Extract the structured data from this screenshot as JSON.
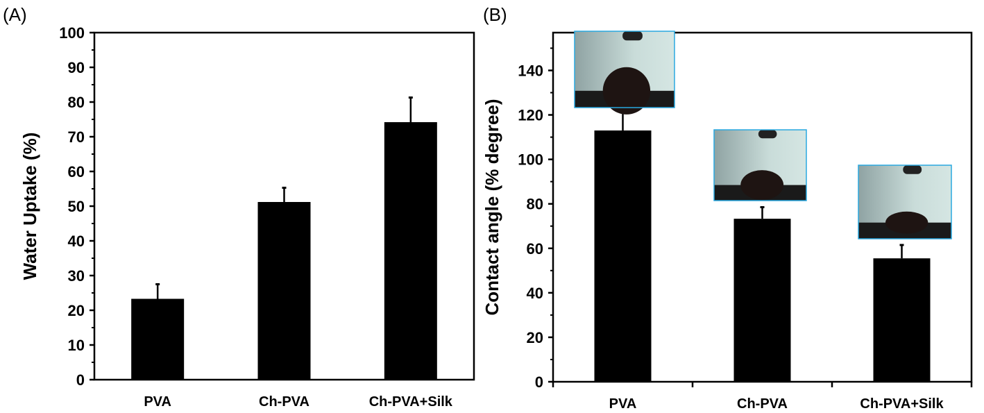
{
  "chart_data": [
    {
      "type": "bar",
      "panel_label": "(A)",
      "ylabel": "Water Uptake (%)",
      "xlabel": "",
      "categories": [
        "PVA",
        "Ch-PVA",
        "Ch-PVA+Silk"
      ],
      "values": [
        23.3,
        51.2,
        74.2
      ],
      "error_upper": [
        4.2,
        4.1,
        7.1
      ],
      "ylim": [
        0,
        100
      ],
      "yticks": [
        0,
        10,
        20,
        30,
        40,
        50,
        60,
        70,
        80,
        90,
        100
      ],
      "bar_color": "#000000",
      "grid": false
    },
    {
      "type": "bar",
      "panel_label": "(B)",
      "ylabel": "Contact angle (% degree)",
      "xlabel": "",
      "categories": [
        "PVA",
        "Ch-PVA",
        "Ch-PVA+Silk"
      ],
      "values": [
        113,
        73.3,
        55.5
      ],
      "error_upper": [
        9.5,
        5.2,
        6.0
      ],
      "ylim": [
        0,
        157
      ],
      "yticks": [
        0,
        20,
        40,
        60,
        80,
        100,
        120,
        140
      ],
      "bar_color": "#000000",
      "inset_border_color": "#29a8e0",
      "insets": [
        "droplet-image-pva",
        "droplet-image-ch-pva",
        "droplet-image-ch-pva-silk"
      ],
      "grid": false
    }
  ]
}
